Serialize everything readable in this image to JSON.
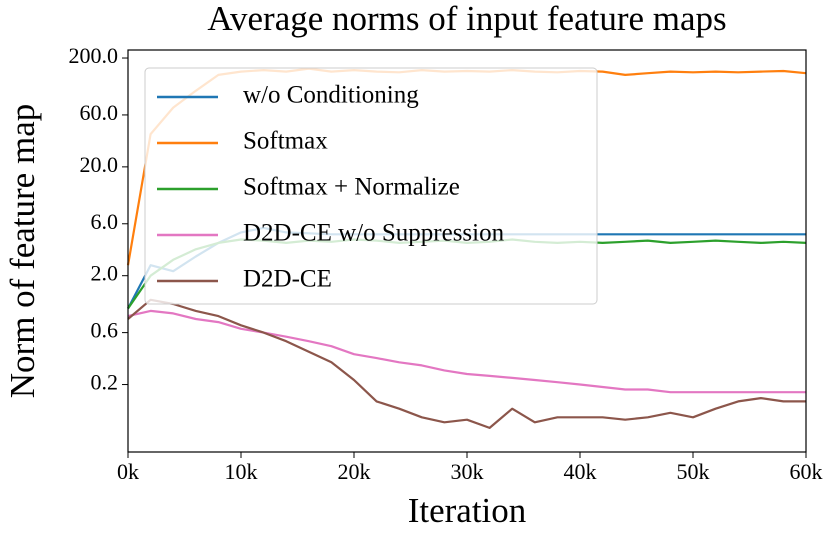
{
  "chart_data": {
    "type": "line",
    "title": "Average norms of input feature maps",
    "x_label": "Iteration",
    "y_label": "Norm of feature map",
    "log_y": true,
    "legend": "upper left",
    "xlim": [
      0,
      60000
    ],
    "ylim": [
      0.048,
      237
    ],
    "xticks": [
      {
        "value": 0,
        "label": "0k"
      },
      {
        "value": 10000,
        "label": "10k"
      },
      {
        "value": 20000,
        "label": "20k"
      },
      {
        "value": 30000,
        "label": "30k"
      },
      {
        "value": 40000,
        "label": "40k"
      },
      {
        "value": 50000,
        "label": "50k"
      },
      {
        "value": 60000,
        "label": "60k"
      }
    ],
    "yticks": [
      0.2,
      0.6,
      {
        "value": 2,
        "label": "2.0"
      },
      {
        "value": 6,
        "label": "6.0"
      },
      {
        "value": 20,
        "label": "20.0"
      },
      {
        "value": 60,
        "label": "60.0"
      },
      {
        "value": 200,
        "label": "200.0"
      }
    ],
    "x": [
      0,
      2000,
      4000,
      6000,
      8000,
      10000,
      12000,
      14000,
      16000,
      18000,
      20000,
      22000,
      24000,
      26000,
      28000,
      30000,
      32000,
      34000,
      36000,
      38000,
      40000,
      42000,
      44000,
      46000,
      48000,
      50000,
      52000,
      54000,
      56000,
      58000,
      60000
    ],
    "series": [
      {
        "name": "w/o Conditioning",
        "color": "#1f77b4",
        "values": [
          1.0,
          2.5,
          2.2,
          3.0,
          4.0,
          5.0,
          5.5,
          5.0,
          4.9,
          4.8,
          4.8,
          4.8,
          4.8,
          4.8,
          4.8,
          4.8,
          4.8,
          4.8,
          4.8,
          4.8,
          4.8,
          4.8,
          4.8,
          4.8,
          4.8,
          4.8,
          4.8,
          4.8,
          4.8,
          4.8,
          4.8
        ]
      },
      {
        "name": "Softmax",
        "color": "#ff7f0e",
        "values": [
          2.5,
          40,
          70,
          100,
          140,
          150,
          155,
          150,
          160,
          150,
          155,
          150,
          148,
          155,
          150,
          152,
          150,
          155,
          150,
          148,
          152,
          150,
          140,
          145,
          150,
          148,
          150,
          148,
          150,
          152,
          145
        ]
      },
      {
        "name": "Softmax + Normalize",
        "color": "#2ca02c",
        "values": [
          1.0,
          2.0,
          2.8,
          3.5,
          4.0,
          4.3,
          4.2,
          4.0,
          4.2,
          4.1,
          4.3,
          4.2,
          4.0,
          4.1,
          4.2,
          4.0,
          4.1,
          4.3,
          4.1,
          4.0,
          4.1,
          4.0,
          4.1,
          4.2,
          4.0,
          4.1,
          4.2,
          4.1,
          4.0,
          4.1,
          4.0
        ]
      },
      {
        "name": "D2D-CE w/o Suppression",
        "color": "#e377c2",
        "values": [
          0.85,
          0.95,
          0.9,
          0.8,
          0.75,
          0.65,
          0.6,
          0.55,
          0.5,
          0.45,
          0.38,
          0.35,
          0.32,
          0.3,
          0.27,
          0.25,
          0.24,
          0.23,
          0.22,
          0.21,
          0.2,
          0.19,
          0.18,
          0.18,
          0.17,
          0.17,
          0.17,
          0.17,
          0.17,
          0.17,
          0.17
        ]
      },
      {
        "name": "D2D-CE",
        "color": "#8c564b",
        "values": [
          0.8,
          1.2,
          1.1,
          0.95,
          0.85,
          0.7,
          0.6,
          0.5,
          0.4,
          0.32,
          0.22,
          0.14,
          0.12,
          0.1,
          0.09,
          0.095,
          0.08,
          0.12,
          0.09,
          0.1,
          0.1,
          0.1,
          0.095,
          0.1,
          0.11,
          0.1,
          0.12,
          0.14,
          0.15,
          0.14,
          0.14
        ]
      }
    ]
  }
}
